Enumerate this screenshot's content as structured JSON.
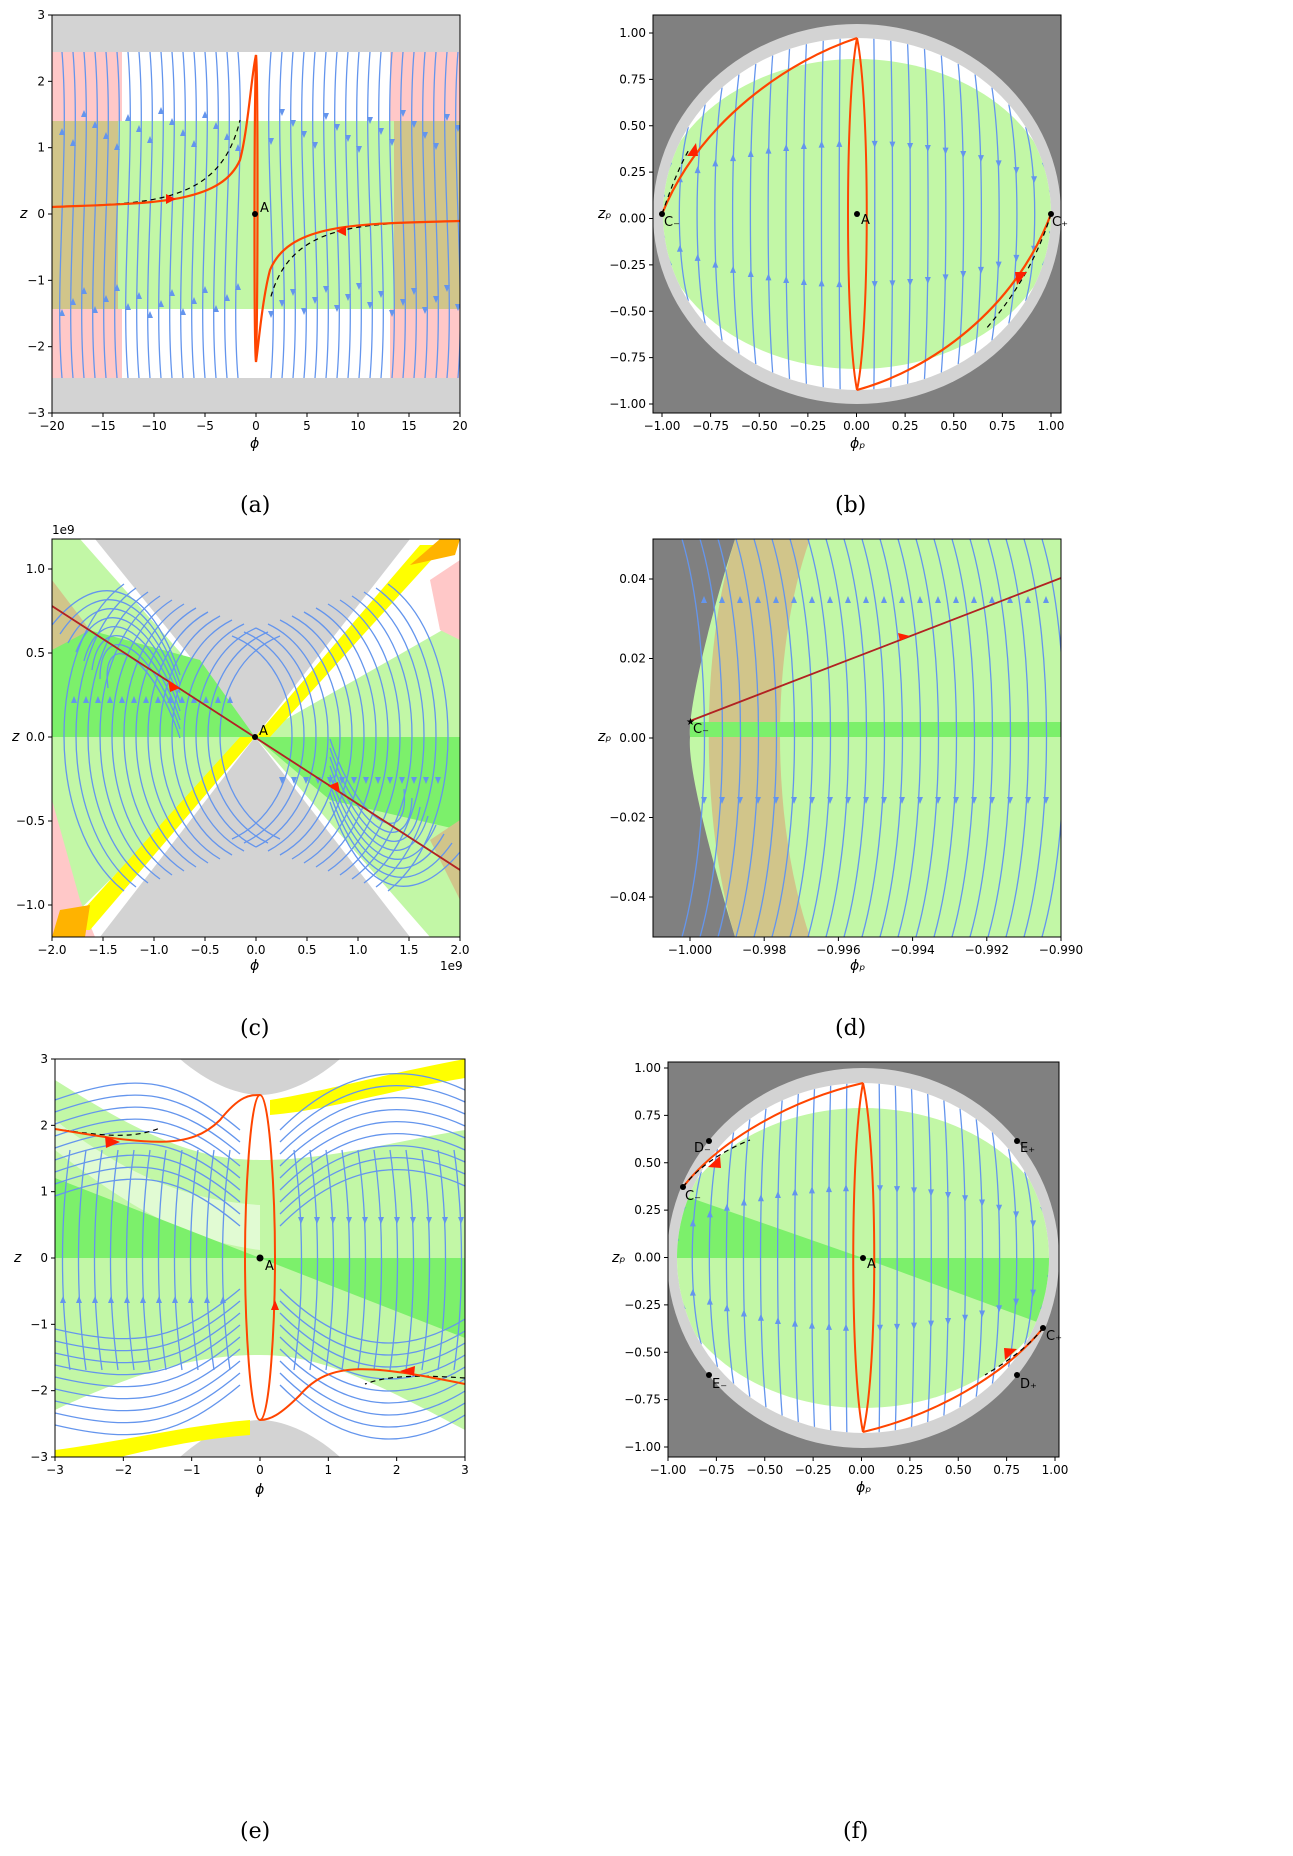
{
  "chart_data": [
    {
      "panel": "a",
      "caption": "(a)",
      "type": "streamplot",
      "xlabel": "ϕ",
      "ylabel": "z",
      "xlim": [
        -20,
        20
      ],
      "ylim": [
        -3,
        3
      ],
      "xticks": [
        "−20",
        "−15",
        "−10",
        "−5",
        "0",
        "5",
        "10",
        "15",
        "20"
      ],
      "yticks": [
        "3",
        "2",
        "1",
        "0",
        "−1",
        "−2",
        "−3"
      ],
      "points": [
        {
          "label": "A",
          "x": 0,
          "y": 0
        }
      ]
    },
    {
      "panel": "b",
      "caption": "(b)",
      "type": "streamplot",
      "xlabel": "ϕₚ",
      "ylabel": "zₚ",
      "xlim": [
        -1.02,
        1.02
      ],
      "ylim": [
        -1.02,
        1.02
      ],
      "xticks": [
        "−1.00",
        "−0.75",
        "−0.50",
        "−0.25",
        "0.00",
        "0.25",
        "0.50",
        "0.75",
        "1.00"
      ],
      "yticks": [
        "1.00",
        "0.75",
        "0.50",
        "0.25",
        "0.00",
        "−0.25",
        "−0.50",
        "−0.75",
        "−1.00"
      ],
      "points": [
        {
          "label": "A",
          "x": 0,
          "y": 0
        },
        {
          "label": "C₋",
          "x": -1,
          "y": 0
        },
        {
          "label": "C₊",
          "x": 1,
          "y": 0
        }
      ]
    },
    {
      "panel": "c",
      "caption": "(c)",
      "type": "streamplot",
      "xlabel": "ϕ",
      "ylabel": "z",
      "x_scale_label": "1e9",
      "y_scale_label": "1e9",
      "xlim": [
        -2.0,
        2.0
      ],
      "ylim": [
        -1.2,
        1.2
      ],
      "xticks": [
        "−2.0",
        "−1.5",
        "−1.0",
        "−0.5",
        "0.0",
        "0.5",
        "1.0",
        "1.5",
        "2.0"
      ],
      "yticks": [
        "1.0",
        "0.5",
        "0.0",
        "−0.5",
        "−1.0"
      ],
      "points": [
        {
          "label": "A",
          "x": 0,
          "y": 0
        }
      ]
    },
    {
      "panel": "d",
      "caption": "(d)",
      "type": "streamplot",
      "xlabel": "ϕₚ",
      "ylabel": "zₚ",
      "xlim": [
        -1.001,
        -0.99
      ],
      "ylim": [
        -0.05,
        0.05
      ],
      "xticks": [
        "−1.000",
        "−0.998",
        "−0.996",
        "−0.994",
        "−0.992",
        "−0.990"
      ],
      "yticks": [
        "0.04",
        "0.02",
        "0.00",
        "−0.02",
        "−0.04"
      ],
      "points": [
        {
          "label": "C₋",
          "x": -1.0,
          "y": 0.004
        }
      ]
    },
    {
      "panel": "e",
      "caption": "(e)",
      "type": "streamplot",
      "xlabel": "ϕ",
      "ylabel": "z",
      "xlim": [
        -3,
        3
      ],
      "ylim": [
        -3,
        3
      ],
      "xticks": [
        "−3",
        "−2",
        "−1",
        "0",
        "1",
        "2",
        "3"
      ],
      "yticks": [
        "3",
        "2",
        "1",
        "0",
        "−1",
        "−2",
        "−3"
      ],
      "points": [
        {
          "label": "A",
          "x": 0,
          "y": 0
        }
      ]
    },
    {
      "panel": "f",
      "caption": "(f)",
      "type": "streamplot",
      "xlabel": "ϕₚ",
      "ylabel": "zₚ",
      "xlim": [
        -1.02,
        1.02
      ],
      "ylim": [
        -1.02,
        1.02
      ],
      "xticks": [
        "−1.00",
        "−0.75",
        "−0.50",
        "−0.25",
        "0.00",
        "0.25",
        "0.50",
        "0.75",
        "1.00"
      ],
      "yticks": [
        "1.00",
        "0.75",
        "0.50",
        "0.25",
        "0.00",
        "−0.25",
        "−0.50",
        "−0.75",
        "−1.00"
      ],
      "points": [
        {
          "label": "A",
          "x": 0,
          "y": 0
        },
        {
          "label": "C₋",
          "x": -0.93,
          "y": 0.37
        },
        {
          "label": "C₊",
          "x": 0.93,
          "y": -0.37
        },
        {
          "label": "D₋",
          "x": -0.79,
          "y": 0.61
        },
        {
          "label": "D₊",
          "x": 0.79,
          "y": -0.61
        },
        {
          "label": "E₊",
          "x": 0.79,
          "y": 0.61
        },
        {
          "label": "E₋",
          "x": -0.79,
          "y": -0.61
        }
      ]
    }
  ],
  "colors": {
    "streamline": "#6495ed",
    "orbit": "#ff4500",
    "separatrix": "#b22222",
    "light_green": "#c2f7a6",
    "green": "#7cf06b",
    "pink": "#ffc8c8",
    "tan": "#d1c58a",
    "yellow": "#ffff00",
    "orange": "#ffb300",
    "light_gray": "#d3d3d3",
    "dark_gray": "#808080"
  }
}
